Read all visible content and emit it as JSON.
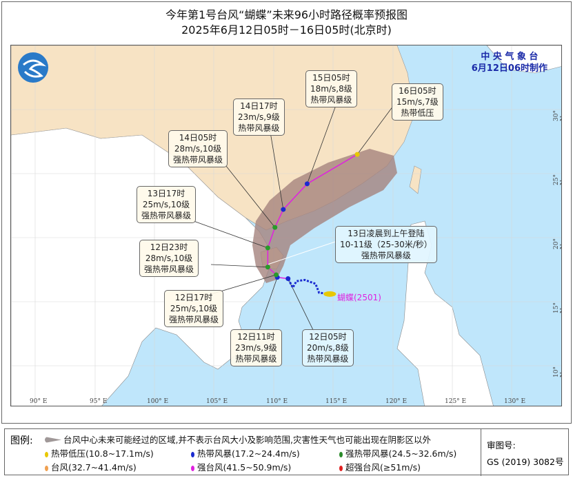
{
  "title": {
    "line1": "今年第1号台风“蝴蝶”未来96小时路径概率预报图",
    "line2": "2025年6月12日05时－16日05时(北京时)"
  },
  "agency": {
    "name": "中 央 气 象 台",
    "made": "6月12日06时制作"
  },
  "typhoon_name": "蝴蝶(2501)",
  "axes": {
    "lon_ticks": [
      "90° E",
      "95° E",
      "100° E",
      "105° E",
      "110° E",
      "115° E",
      "120° E",
      "125° E",
      "130° E"
    ],
    "lat_ticks": [
      "30° N",
      "25° N",
      "20° N",
      "15° N",
      "10° N"
    ]
  },
  "forecast_points": [
    {
      "time": "12日05时",
      "speed": "20m/s,8级",
      "level": "热带风暴级",
      "lon": 111.2,
      "lat": 16.8,
      "color": "#1a2ad0"
    },
    {
      "time": "12日11时",
      "speed": "23m/s,9级",
      "level": "热带风暴级",
      "lon": 110.3,
      "lat": 16.9,
      "color": "#1a2ad0"
    },
    {
      "time": "12日17时",
      "speed": "25m/s,10级",
      "level": "强热带风暴级",
      "lon": 110.2,
      "lat": 17.1,
      "color": "#2a9a2a"
    },
    {
      "time": "12日23时",
      "speed": "28m/s,10级",
      "level": "强热带风暴级",
      "lon": 109.5,
      "lat": 17.7,
      "color": "#2a9a2a"
    },
    {
      "time": "13日17时",
      "speed": "25m/s,10级",
      "level": "强热带风暴级",
      "lon": 109.5,
      "lat": 19.2,
      "color": "#2a9a2a"
    },
    {
      "time": "14日05时",
      "speed": "28m/s,10级",
      "level": "强热带风暴级",
      "lon": 110.1,
      "lat": 20.8,
      "color": "#2a9a2a"
    },
    {
      "time": "14日17时",
      "speed": "23m/s,9级",
      "level": "热带风暴级",
      "lon": 110.8,
      "lat": 22.2,
      "color": "#1a2ad0"
    },
    {
      "time": "15日05时",
      "speed": "18m/s,8级",
      "level": "热带风暴级",
      "lon": 112.8,
      "lat": 24.2,
      "color": "#1a2ad0"
    },
    {
      "time": "16日05时",
      "speed": "15m/s,7级",
      "level": "热带低压",
      "lon": 117.0,
      "lat": 26.5,
      "color": "#e8c800"
    }
  ],
  "past_track": [
    [
      114.7,
      15.6
    ],
    [
      113.8,
      15.7
    ],
    [
      113.5,
      16.4
    ],
    [
      112.6,
      16.7
    ],
    [
      111.9,
      16.6
    ],
    [
      111.6,
      16.1
    ],
    [
      111.2,
      16.8
    ]
  ],
  "landfall": {
    "line1": "13日凌晨到上午登陆",
    "line2": "10-11级（25-30米/秒）",
    "line3": "强热带风暴级"
  },
  "legend": {
    "title": "图例:",
    "cone": "台风中心未来可能经过的区域,并不表示台风大小及影响范围,灾害性天气也可能出现在阴影区以外",
    "items": [
      {
        "label": "热带低压(10.8~17.1m/s)",
        "color": "#e8c800"
      },
      {
        "label": "热带风暴(17.2~24.4m/s)",
        "color": "#1a2ad0"
      },
      {
        "label": "强热带风暴(24.5~32.6m/s)",
        "color": "#2a8a2a"
      },
      {
        "label": "台风(32.7~41.4m/s)",
        "color": "#f0a050"
      },
      {
        "label": "强台风(41.5~50.9m/s)",
        "color": "#e020e0"
      },
      {
        "label": "超强台风(≥51m/s)",
        "color": "#e02020"
      }
    ]
  },
  "approval": {
    "label": "审图号:",
    "number": "GS (2019) 3082号"
  },
  "colors": {
    "sea": "#bfe6fb",
    "china_land": "#f7e3c4",
    "foreign_land": "#ffffff",
    "cone": "#a5837e",
    "track": "#e020e0"
  }
}
